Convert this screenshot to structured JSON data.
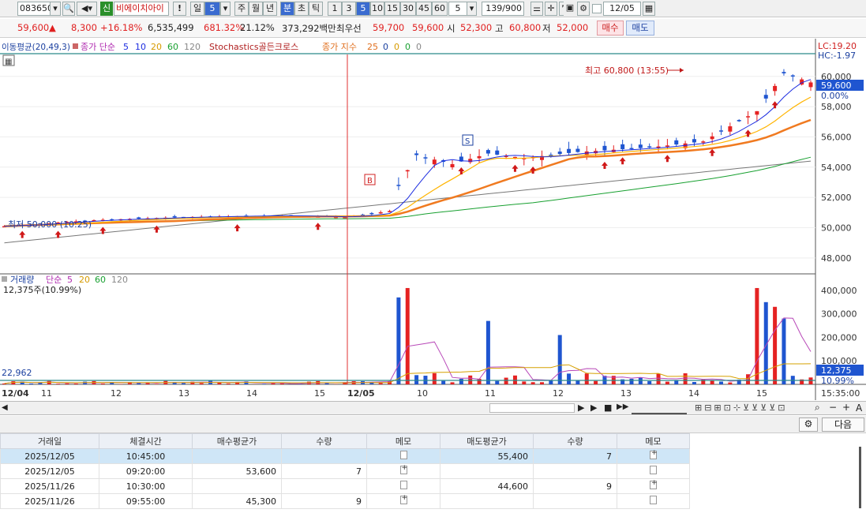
{
  "toolbar": {
    "code": "083650",
    "flag": "신",
    "name": "비에이치아이",
    "period_day": "일",
    "period_day_n": "5",
    "period_week": "주",
    "period_month": "월",
    "period_year": "년",
    "period_min": "분",
    "period_sec": "초",
    "period_tick": "틱",
    "intervals": [
      "1",
      "3",
      "5",
      "10",
      "15",
      "30",
      "45",
      "60"
    ],
    "interval_n": "5",
    "count": "139/900",
    "date": "12/05",
    "warn": "!"
  },
  "quote": {
    "price": "59,600",
    "arrow": "▲",
    "change": "8,300",
    "rate": "+16.18%",
    "volume": "6,535,499",
    "vol_rate": "681.32%",
    "turnover_rate": "21.12%",
    "amount": "373,292백만",
    "best_label": "최우선",
    "best_sell": "59,700",
    "best_buy": "59,600",
    "open_label": "시",
    "open": "52,300",
    "high_label": "고",
    "high": "60,800",
    "low_label": "저",
    "low": "52,000",
    "buy_btn": "매수",
    "sell_btn": "매도"
  },
  "legend": {
    "overlap": "이동평균(20,49,3)",
    "ma_label": "종가 단순",
    "ma_periods": [
      "5",
      "10",
      "20",
      "60",
      "120"
    ],
    "stoch": "Stochastics골든크로스",
    "ema_label": "종가 지수",
    "ema_period": "25",
    "zeros": [
      "0",
      "0",
      "0",
      "0"
    ]
  },
  "price_axis": {
    "lc": "LC:19.20",
    "hc": "HC:-1.97",
    "ticks": [
      "60,000",
      "58,000",
      "56,000",
      "54,000",
      "52,000",
      "50,000",
      "48,000"
    ],
    "current": "59,600",
    "current_pct": "0.00%"
  },
  "annotations": {
    "high": "최고 60,800 (13:55)",
    "low": "최저 50,000 (10:25)",
    "b_mark": "B",
    "s_mark": "S"
  },
  "volume": {
    "legend_label": "거래량",
    "ma_label": "단순",
    "periods": [
      "5",
      "20",
      "60",
      "120"
    ],
    "sub": "12,375주(10.99%)",
    "left_value": "22,962",
    "ticks": [
      "400,000",
      "300,000",
      "200,000",
      "100,000"
    ],
    "current": "12,375",
    "current_pct": "10.99%"
  },
  "time_axis": {
    "labels": [
      "12/04",
      "11",
      "12",
      "13",
      "14",
      "15",
      "12/05",
      "10",
      "11",
      "12",
      "13",
      "14",
      "15"
    ],
    "last": "15:35:00"
  },
  "bottom": {
    "next_btn": "다음"
  },
  "table": {
    "headers": [
      "거래일",
      "체결시간",
      "매수평균가",
      "수량",
      "메모",
      "매도평균가",
      "수량",
      "메모"
    ],
    "rows": [
      [
        "2025/12/05",
        "10:45:00",
        "",
        "",
        "doc",
        "55,400",
        "7",
        "plus"
      ],
      [
        "2025/12/05",
        "09:20:00",
        "53,600",
        "7",
        "plus",
        "",
        "",
        "doc"
      ],
      [
        "2025/11/26",
        "10:30:00",
        "",
        "",
        "doc",
        "44,600",
        "9",
        "plus"
      ],
      [
        "2025/11/26",
        "09:55:00",
        "45,300",
        "9",
        "plus",
        "",
        "",
        "doc"
      ]
    ]
  },
  "colors": {
    "up": "#e52222",
    "down": "#1f55d0",
    "ma5": "#ffb400",
    "ma10": "#1c2ce0",
    "ma20": "#18a030",
    "ma60": "#808080",
    "ema": "#f07a20",
    "volma": "#b848b8"
  },
  "chart_data": {
    "type": "candlestick",
    "ylim": [
      47000,
      61500
    ],
    "vol_ylim": [
      0,
      430000
    ],
    "annotations": {
      "high": {
        "index": 87,
        "value": 60800
      },
      "low": {
        "index": 1,
        "value": 50000
      },
      "day_split_index": 44
    }
  }
}
